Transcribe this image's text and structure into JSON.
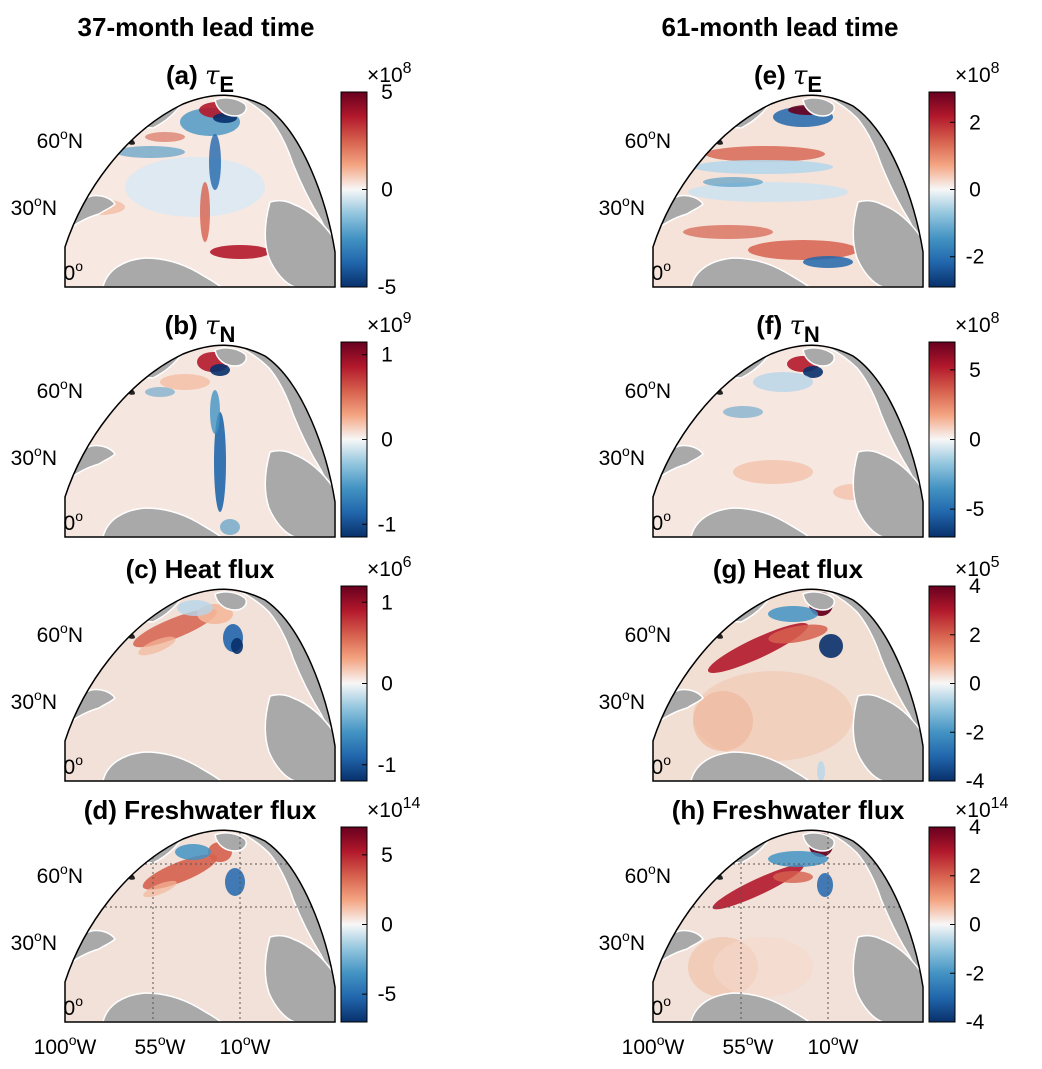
{
  "figure": {
    "columns": [
      {
        "title": "37-month lead time",
        "panels": [
          {
            "id": "a",
            "label": "(a) ",
            "symbol": "τ",
            "sub": "E",
            "style": "tau_e_left",
            "colorbar": {
              "min": -5,
              "max": 5,
              "ticks": [
                "5",
                "0",
                "-5"
              ],
              "tick_values": [
                5,
                0,
                -5
              ],
              "mult_base": "×10",
              "mult_exp": "8"
            }
          },
          {
            "id": "b",
            "label": "(b) ",
            "symbol": "τ",
            "sub": "N",
            "style": "tau_n_left",
            "colorbar": {
              "min": -1.15,
              "max": 1.15,
              "ticks": [
                "1",
                "0",
                "-1"
              ],
              "tick_values": [
                1,
                0,
                -1
              ],
              "mult_base": "×10",
              "mult_exp": "9"
            }
          },
          {
            "id": "c",
            "label": "(c) Heat flux",
            "symbol": "",
            "sub": "",
            "style": "heat_left",
            "colorbar": {
              "min": -1.2,
              "max": 1.2,
              "ticks": [
                "1",
                "0",
                "-1"
              ],
              "tick_values": [
                1,
                0,
                -1
              ],
              "mult_base": "×10",
              "mult_exp": "6"
            }
          },
          {
            "id": "d",
            "label": "(d) Freshwater flux",
            "symbol": "",
            "sub": "",
            "style": "fw_left",
            "colorbar": {
              "min": -7,
              "max": 7,
              "ticks": [
                "5",
                "0",
                "-5"
              ],
              "tick_values": [
                5,
                0,
                -5
              ],
              "mult_base": "×10",
              "mult_exp": "14"
            }
          }
        ]
      },
      {
        "title": "61-month lead time",
        "panels": [
          {
            "id": "e",
            "label": "(e) ",
            "symbol": "τ",
            "sub": "E",
            "style": "tau_e_right",
            "colorbar": {
              "min": -2.9,
              "max": 2.9,
              "ticks": [
                "2",
                "0",
                "-2"
              ],
              "tick_values": [
                2,
                0,
                -2
              ],
              "mult_base": "×10",
              "mult_exp": "8"
            }
          },
          {
            "id": "f",
            "label": "(f) ",
            "symbol": "τ",
            "sub": "N",
            "style": "tau_n_right",
            "colorbar": {
              "min": -7,
              "max": 7,
              "ticks": [
                "5",
                "0",
                "-5"
              ],
              "tick_values": [
                5,
                0,
                -5
              ],
              "mult_base": "×10",
              "mult_exp": "8"
            }
          },
          {
            "id": "g",
            "label": "(g) Heat flux",
            "symbol": "",
            "sub": "",
            "style": "heat_right",
            "colorbar": {
              "min": -4,
              "max": 4,
              "ticks": [
                "4",
                "2",
                "0",
                "-2",
                "-4"
              ],
              "tick_values": [
                4,
                2,
                0,
                -2,
                -4
              ],
              "mult_base": "×10",
              "mult_exp": "5"
            }
          },
          {
            "id": "h",
            "label": "(h) Freshwater flux",
            "symbol": "",
            "sub": "",
            "style": "fw_right",
            "colorbar": {
              "min": -4,
              "max": 4,
              "ticks": [
                "4",
                "2",
                "0",
                "-2",
                "-4"
              ],
              "tick_values": [
                4,
                2,
                0,
                -2,
                -4
              ],
              "mult_base": "×10",
              "mult_exp": "14"
            }
          }
        ]
      }
    ],
    "lat_labels": [
      {
        "deg": "60",
        "hemi": "N"
      },
      {
        "deg": "30",
        "hemi": "N"
      },
      {
        "deg": "0",
        "hemi": ""
      }
    ],
    "lon_labels": [
      {
        "deg": "100",
        "hemi": "W"
      },
      {
        "deg": "55",
        "hemi": "W"
      },
      {
        "deg": "10",
        "hemi": "W"
      }
    ],
    "degree_symbol": "o",
    "colors": {
      "land": "#a9a9a9",
      "ocean_neutral": "#f3e4dc",
      "coast": "#ffffff",
      "colormap": [
        "#08306b",
        "#2166ac",
        "#4393c3",
        "#92c5de",
        "#f7f7f7",
        "#f4a582",
        "#d6604d",
        "#b2182b",
        "#67001f"
      ]
    }
  }
}
